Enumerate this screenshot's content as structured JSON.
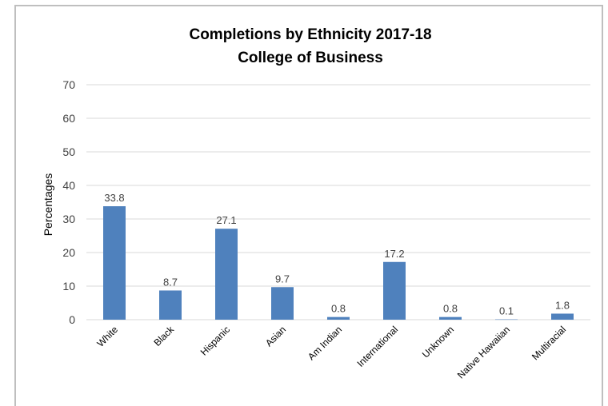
{
  "chart_data": {
    "type": "bar",
    "title": [
      "Completions by Ethnicity 2017-18",
      "College of Business"
    ],
    "ylabel": "Percentages",
    "xlabel": "",
    "ylim": [
      0,
      70
    ],
    "yticks": [
      0,
      10,
      20,
      30,
      40,
      50,
      60,
      70
    ],
    "grid": true,
    "legend": "none",
    "bar_color": "#4F81BD",
    "categories": [
      "White",
      "Black",
      "Hispanic",
      "Asian",
      "Am Indian",
      "International",
      "Unknown",
      "Native Hawaiian",
      "Multiracial"
    ],
    "values": [
      33.8,
      8.7,
      27.1,
      9.7,
      0.8,
      17.2,
      0.8,
      0.1,
      1.8
    ],
    "data_labels": [
      "33.8",
      "8.7",
      "27.1",
      "9.7",
      "0.8",
      "17.2",
      "0.8",
      "0.1",
      "1.8"
    ]
  }
}
